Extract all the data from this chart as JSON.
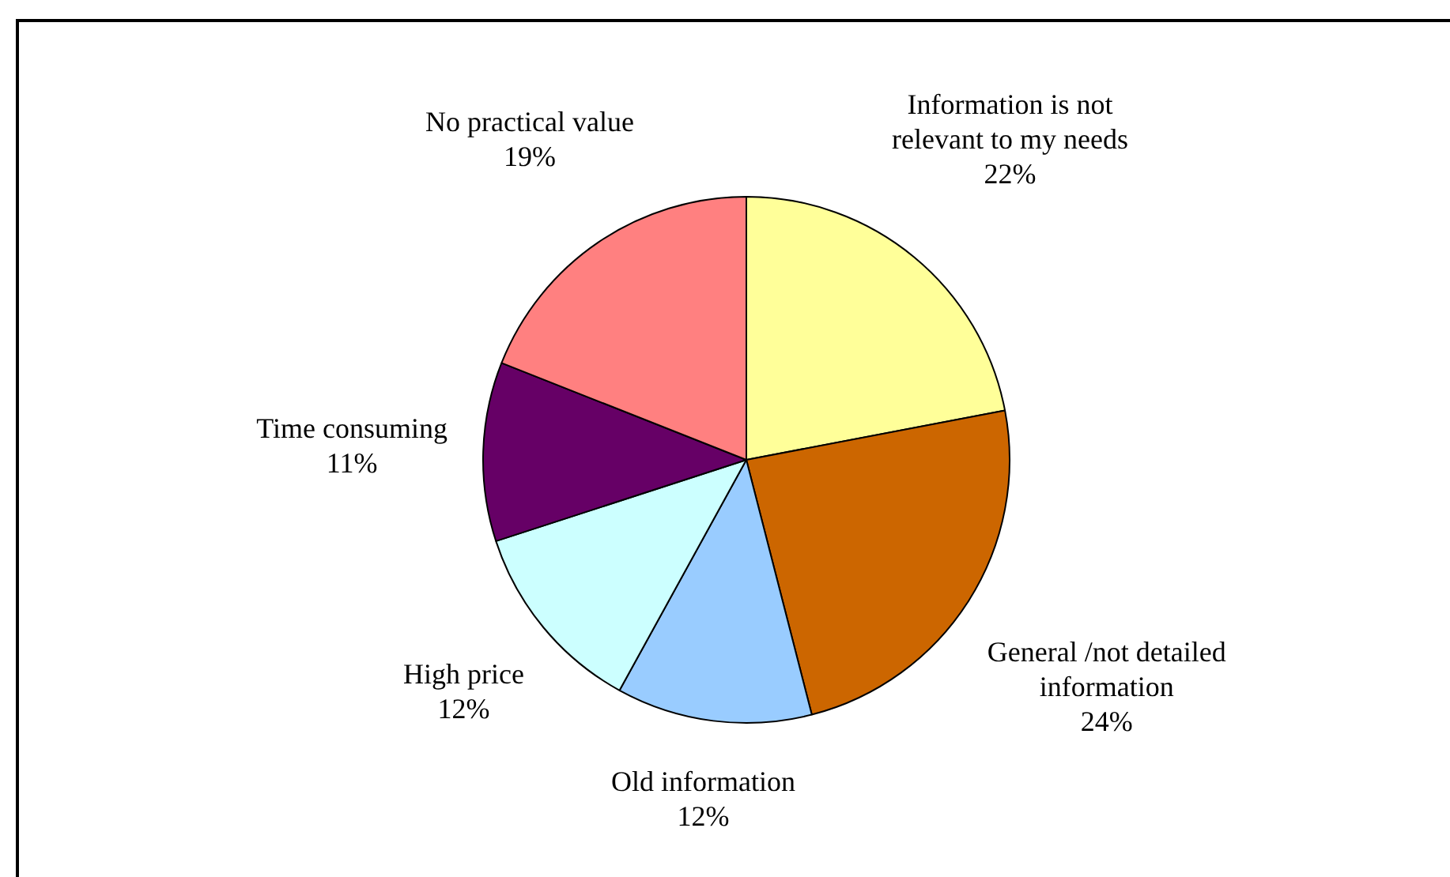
{
  "chart_data": {
    "type": "pie",
    "categories": [
      "Information is not relevant to my needs",
      "General /not detailed information",
      "Old information",
      "High price",
      "Time consuming",
      "No practical value"
    ],
    "values": [
      22,
      24,
      12,
      12,
      11,
      19
    ],
    "colors": [
      "#ffff99",
      "#cc6600",
      "#99ccff",
      "#ccffff",
      "#660066",
      "#ff8080"
    ],
    "value_labels": [
      "22%",
      "24%",
      "12%",
      "12%",
      "11%",
      "19%"
    ],
    "legend": false
  }
}
